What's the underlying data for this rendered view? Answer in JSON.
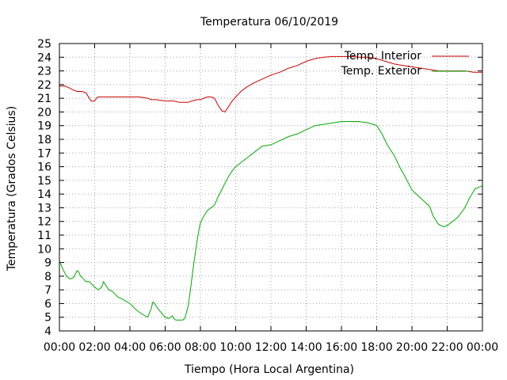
{
  "chart_data": {
    "type": "line",
    "title": "Temperatura 06/10/2019",
    "xlabel": "Tiempo (Hora Local Argentina)",
    "ylabel": "Temperatura (Grados Celsius)",
    "xlim": [
      0,
      24
    ],
    "ylim": [
      4,
      25
    ],
    "xticks": [
      "00:00",
      "02:00",
      "04:00",
      "06:00",
      "08:00",
      "10:00",
      "12:00",
      "14:00",
      "16:00",
      "18:00",
      "20:00",
      "22:00",
      "00:00"
    ],
    "yticks": [
      4,
      5,
      6,
      7,
      8,
      9,
      10,
      11,
      12,
      13,
      14,
      15,
      16,
      17,
      18,
      19,
      20,
      21,
      22,
      23,
      24,
      25
    ],
    "grid": true,
    "legend_position": "top-right",
    "series": [
      {
        "name": "Temp. Interior",
        "color": "#cc0000",
        "x": [
          0,
          0.3,
          0.5,
          0.8,
          1.0,
          1.3,
          1.5,
          1.6,
          1.7,
          1.8,
          1.9,
          2.0,
          2.1,
          2.2,
          2.5,
          3.0,
          3.5,
          4.0,
          4.5,
          5.0,
          5.2,
          5.5,
          6.0,
          6.5,
          6.8,
          7.0,
          7.3,
          7.5,
          7.8,
          8.0,
          8.2,
          8.4,
          8.6,
          8.8,
          9.0,
          9.2,
          9.4,
          9.6,
          9.8,
          10.0,
          10.3,
          10.6,
          11.0,
          11.5,
          12.0,
          12.5,
          13.0,
          13.5,
          14.0,
          14.5,
          15.0,
          15.5,
          16.0,
          16.5,
          17.0,
          17.5,
          18.0,
          18.5,
          19.0,
          19.5,
          20.0,
          20.5,
          21.0,
          21.5,
          22.0,
          22.5,
          23.0,
          23.5,
          24.0
        ],
        "y": [
          21.9,
          21.9,
          21.8,
          21.6,
          21.5,
          21.5,
          21.4,
          21.2,
          21.0,
          20.8,
          20.8,
          20.8,
          21.0,
          21.1,
          21.1,
          21.1,
          21.1,
          21.1,
          21.1,
          21.0,
          20.9,
          20.9,
          20.8,
          20.8,
          20.7,
          20.7,
          20.7,
          20.8,
          20.9,
          20.9,
          21.0,
          21.1,
          21.1,
          21.0,
          20.5,
          20.1,
          20.0,
          20.4,
          20.8,
          21.1,
          21.5,
          21.8,
          22.1,
          22.4,
          22.7,
          22.9,
          23.2,
          23.4,
          23.7,
          23.9,
          24.0,
          24.05,
          24.05,
          24.05,
          24.0,
          24.0,
          23.9,
          23.7,
          23.5,
          23.4,
          23.3,
          23.2,
          23.1,
          23.0,
          23.0,
          23.0,
          23.0,
          22.9,
          22.9
        ]
      },
      {
        "name": "Temp. Exterior",
        "color": "#00aa00",
        "x": [
          0,
          0.2,
          0.4,
          0.6,
          0.8,
          1.0,
          1.1,
          1.2,
          1.3,
          1.5,
          1.7,
          2.0,
          2.2,
          2.4,
          2.5,
          2.6,
          2.8,
          3.0,
          3.3,
          3.6,
          4.0,
          4.3,
          4.6,
          5.0,
          5.2,
          5.3,
          5.4,
          5.6,
          6.0,
          6.2,
          6.4,
          6.5,
          6.6,
          6.8,
          7.0,
          7.1,
          7.2,
          7.3,
          7.4,
          7.5,
          7.6,
          7.7,
          7.8,
          7.9,
          8.0,
          8.2,
          8.4,
          8.6,
          8.8,
          9.0,
          9.2,
          9.4,
          9.6,
          9.8,
          10.0,
          10.2,
          10.5,
          11.0,
          11.5,
          12.0,
          12.5,
          13.0,
          13.5,
          14.0,
          14.5,
          15.0,
          15.5,
          16.0,
          16.5,
          17.0,
          17.5,
          17.8,
          18.0,
          18.3,
          18.6,
          19.0,
          19.3,
          19.6,
          20.0,
          20.5,
          21.0,
          21.2,
          21.5,
          21.8,
          22.0,
          22.3,
          22.6,
          23.0,
          23.3,
          23.6,
          24.0
        ],
        "y": [
          9.1,
          8.5,
          8.0,
          7.8,
          7.9,
          8.4,
          8.3,
          8.0,
          7.9,
          7.6,
          7.6,
          7.2,
          7.0,
          7.2,
          7.6,
          7.4,
          7.0,
          6.9,
          6.5,
          6.3,
          6.0,
          5.6,
          5.3,
          5.0,
          5.6,
          6.1,
          6.0,
          5.6,
          5.0,
          4.9,
          5.1,
          4.9,
          4.8,
          4.8,
          4.8,
          4.9,
          5.3,
          5.8,
          6.7,
          7.7,
          8.7,
          9.6,
          10.5,
          11.3,
          11.9,
          12.4,
          12.8,
          13.0,
          13.2,
          13.8,
          14.3,
          14.8,
          15.3,
          15.7,
          16.0,
          16.2,
          16.5,
          17.0,
          17.5,
          17.6,
          17.9,
          18.2,
          18.4,
          18.7,
          19.0,
          19.1,
          19.2,
          19.3,
          19.3,
          19.3,
          19.2,
          19.1,
          19.0,
          18.4,
          17.6,
          16.8,
          16.0,
          15.3,
          14.3,
          13.7,
          13.1,
          12.4,
          11.8,
          11.6,
          11.7,
          12.0,
          12.3,
          13.0,
          13.8,
          14.4,
          14.6
        ]
      }
    ]
  }
}
